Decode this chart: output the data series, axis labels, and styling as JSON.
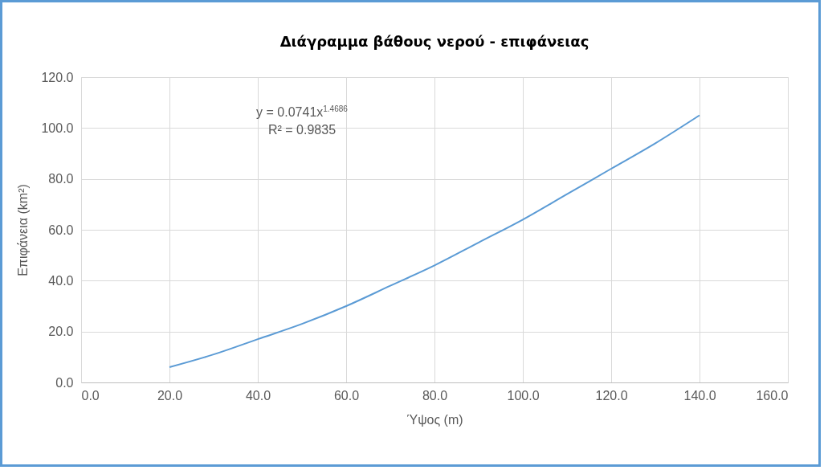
{
  "chart_data": {
    "type": "line",
    "title": "Διάγραμμα βάθους νερού - επιφάνειας",
    "xlabel": "Ύψος (m)",
    "ylabel": "Επιφάνεια (km²)",
    "x": [
      20,
      30,
      40,
      50,
      60,
      70,
      80,
      90,
      100,
      110,
      120,
      130,
      140
    ],
    "series": [
      {
        "color": "#5b9bd5",
        "values": [
          6,
          11,
          17,
          23,
          30,
          38,
          46,
          55,
          64,
          74,
          84,
          94,
          105
        ]
      }
    ],
    "xlim": [
      0,
      160
    ],
    "ylim": [
      0,
      120
    ],
    "xticks": [
      {
        "value": 0,
        "label": "0.0"
      },
      {
        "value": 20,
        "label": "20.0"
      },
      {
        "value": 40,
        "label": "40.0"
      },
      {
        "value": 60,
        "label": "60.0"
      },
      {
        "value": 80,
        "label": "80.0"
      },
      {
        "value": 100,
        "label": "100.0"
      },
      {
        "value": 120,
        "label": "120.0"
      },
      {
        "value": 140,
        "label": "140.0"
      },
      {
        "value": 160,
        "label": "160.0"
      }
    ],
    "yticks": [
      {
        "value": 0,
        "label": "0.0"
      },
      {
        "value": 20,
        "label": "20.0"
      },
      {
        "value": 40,
        "label": "40.0"
      },
      {
        "value": 60,
        "label": "60.0"
      },
      {
        "value": 80,
        "label": "80.0"
      },
      {
        "value": 100,
        "label": "100.0"
      },
      {
        "value": 120,
        "label": "120.0"
      }
    ],
    "annotations": [
      "y = 0.0741x$^{1.4686}$",
      "R² = 0.9835"
    ],
    "grid": true,
    "marker": "none",
    "line_style": "solid",
    "legend": false
  }
}
